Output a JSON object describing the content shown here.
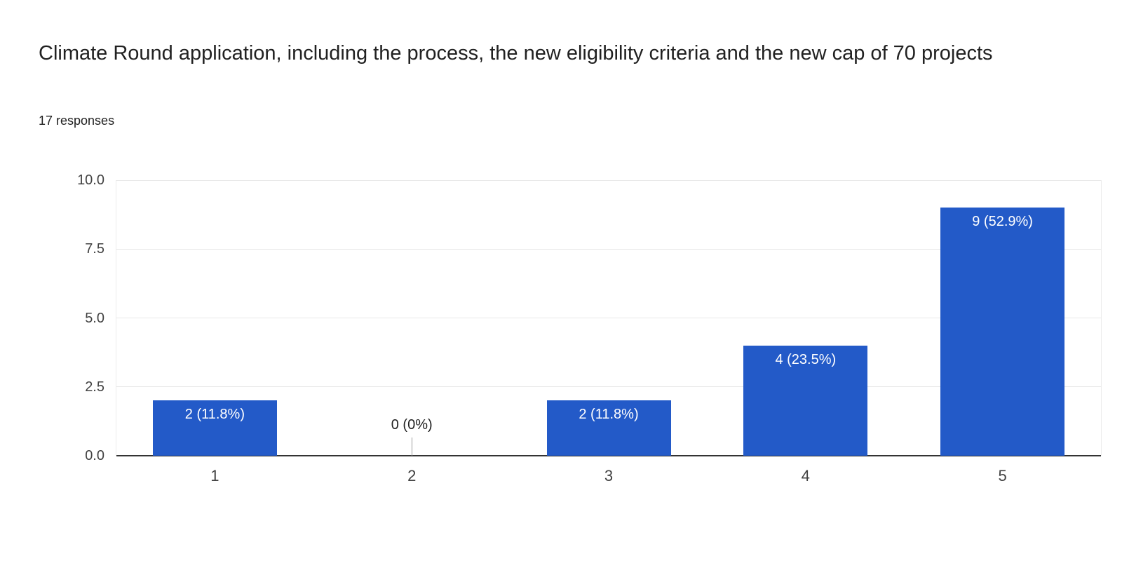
{
  "header": {
    "title": "Climate Round application, including the process, the new eligibility criteria and the new cap of 70 projects",
    "responses_label": "17 responses"
  },
  "colors": {
    "bar": "#235ac8",
    "bar_label_text": "#ffffff",
    "axis_line": "#333333",
    "gridline": "#e8e8e8",
    "tick_text": "#424242",
    "title_text": "#212121",
    "zero_stub": "#9e9e9e",
    "background": "#ffffff"
  },
  "chart_data": {
    "type": "bar",
    "title": "Climate Round application, including the process, the new eligibility criteria and the new cap of 70 projects",
    "subtitle": "17 responses",
    "categories": [
      "1",
      "2",
      "3",
      "4",
      "5"
    ],
    "values": [
      2,
      0,
      2,
      4,
      9
    ],
    "bar_labels": [
      "2 (11.8%)",
      "0 (0%)",
      "2 (11.8%)",
      "4 (23.5%)",
      "9 (52.9%)"
    ],
    "xlabel": "",
    "ylabel": "",
    "ylim": [
      0,
      10
    ],
    "yticks": [
      0.0,
      2.5,
      5.0,
      7.5,
      10.0
    ],
    "ytick_labels": [
      "0.0",
      "2.5",
      "5.0",
      "7.5",
      "10.0"
    ],
    "grid": true,
    "legend": "none"
  }
}
